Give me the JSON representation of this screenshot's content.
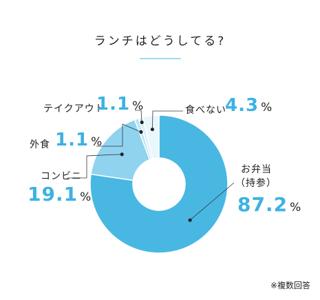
{
  "chart_data": {
    "type": "pie",
    "donut": true,
    "title": "ランチはどうしてる?",
    "unit": "%",
    "categories": [
      "お弁当（持参）",
      "コンビニ",
      "外食",
      "テイクアウト",
      "食べない"
    ],
    "label_lines": [
      [
        "お弁当",
        "（持参）"
      ],
      [
        "コンビニ"
      ],
      [
        "外食"
      ],
      [
        "テイクアウト"
      ],
      [
        "食べない"
      ]
    ],
    "values": [
      87.2,
      19.1,
      1.1,
      1.1,
      4.3
    ],
    "value_labels": [
      "87.2",
      "19.1",
      "1.1",
      "1.1",
      "4.3"
    ],
    "colors": [
      "#48b8e3",
      "#8fd3ef",
      "#bde5f5",
      "#d7f0fa",
      "#e9f7fd"
    ],
    "note": "※複数回答"
  }
}
